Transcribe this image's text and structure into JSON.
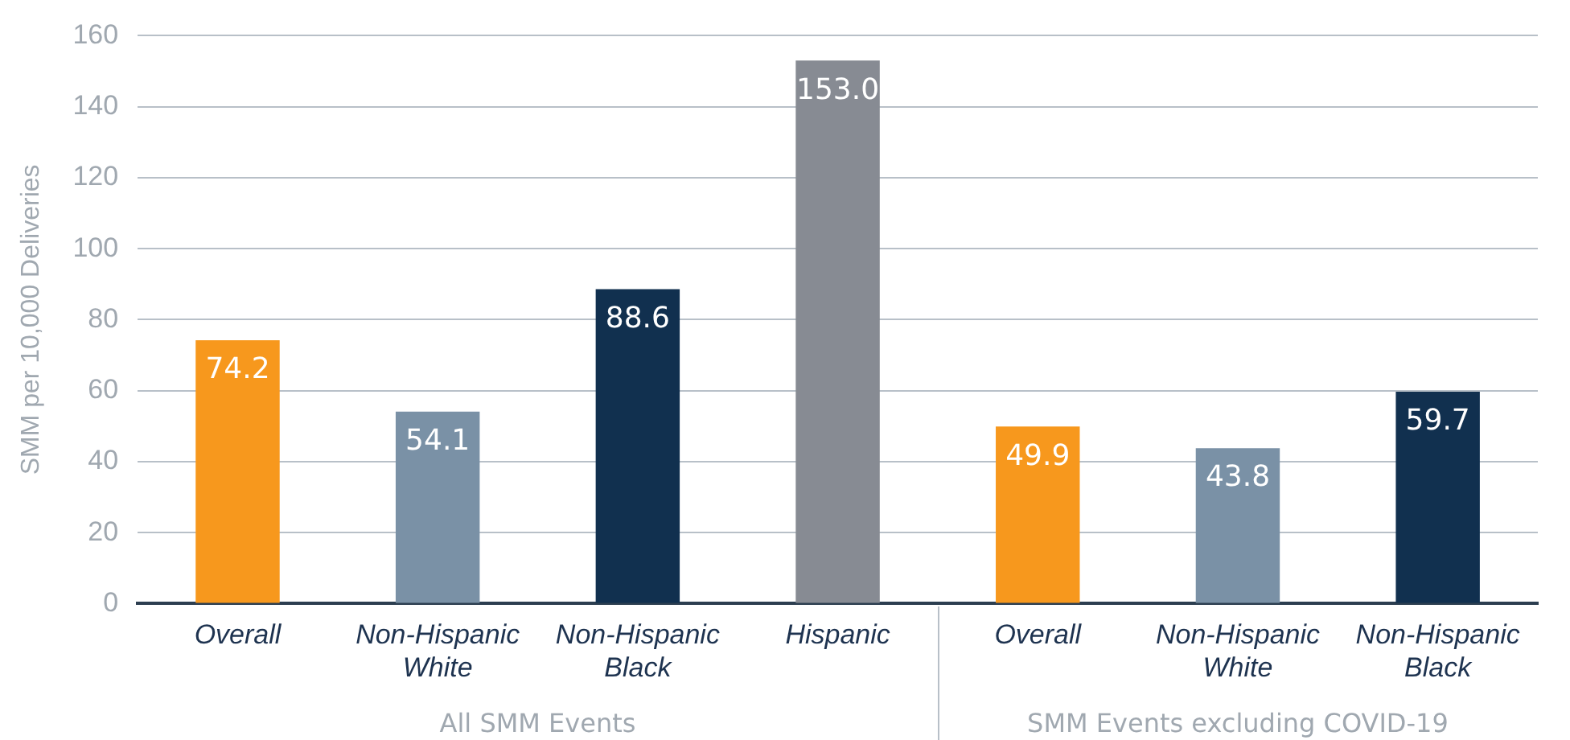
{
  "chart_data": {
    "type": "bar",
    "ylabel": "SMM per 10,000 Deliveries",
    "categories": [
      "Overall",
      "Non-Hispanic White",
      "Non-Hispanic Black",
      "Hispanic",
      "Overall",
      "Non-Hispanic White",
      "Non-Hispanic Black"
    ],
    "values": [
      74.2,
      54.1,
      88.6,
      153.0,
      49.9,
      43.8,
      59.7
    ],
    "value_labels": [
      "74.2",
      "54.1",
      "88.6",
      "153.0",
      "49.9",
      "43.8",
      "59.7"
    ],
    "colors": [
      "#f7981d",
      "#7a91a6",
      "#11304f",
      "#878b93",
      "#f7981d",
      "#7a91a6",
      "#11304f"
    ],
    "ylim": [
      0,
      160
    ],
    "yticks": [
      0,
      20,
      40,
      60,
      80,
      100,
      120,
      140,
      160
    ],
    "grid": "y",
    "annotations": [
      "All SMM Events",
      "SMM Events excluding COVID-19"
    ]
  }
}
